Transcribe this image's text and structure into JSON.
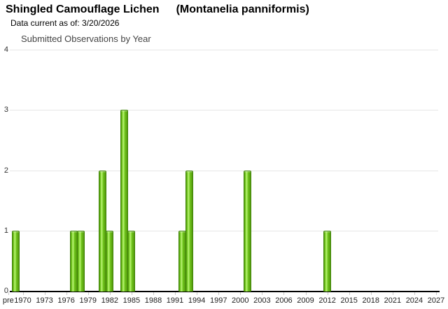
{
  "header": {
    "title_common": "Shingled Camouflage Lichen",
    "title_scientific": "(Montanelia panniformis)",
    "data_current": "Data current as of: 3/20/2026"
  },
  "chart_data": {
    "type": "bar",
    "title": "Submitted Observations by Year",
    "xlabel": "",
    "ylabel": "",
    "ylim": [
      0,
      4
    ],
    "grid": true,
    "legend": "none",
    "x_axis_labels": [
      "pre",
      "1970",
      "1973",
      "1976",
      "1979",
      "1982",
      "1985",
      "1988",
      "1991",
      "1994",
      "1997",
      "2000",
      "2003",
      "2006",
      "2009",
      "2012",
      "2015",
      "2018",
      "2021",
      "2024",
      "2027"
    ],
    "y_ticks": [
      "0",
      "1",
      "2",
      "3",
      "4"
    ],
    "observations": [
      {
        "year": 1969,
        "count": 1
      },
      {
        "year": 1977,
        "count": 1
      },
      {
        "year": 1978,
        "count": 1
      },
      {
        "year": 1981,
        "count": 2
      },
      {
        "year": 1982,
        "count": 1
      },
      {
        "year": 1984,
        "count": 3
      },
      {
        "year": 1985,
        "count": 1
      },
      {
        "year": 1992,
        "count": 1
      },
      {
        "year": 1993,
        "count": 2
      },
      {
        "year": 2001,
        "count": 2
      },
      {
        "year": 2012,
        "count": 1
      }
    ],
    "colors": {
      "bar_fill": "#6fc41c",
      "bar_fill_dark": "#55990d",
      "bar_highlight": "#b2ef6a",
      "bar_border": "#3e8408",
      "gridline": "#e6e6e6",
      "axis": "#000000"
    }
  }
}
